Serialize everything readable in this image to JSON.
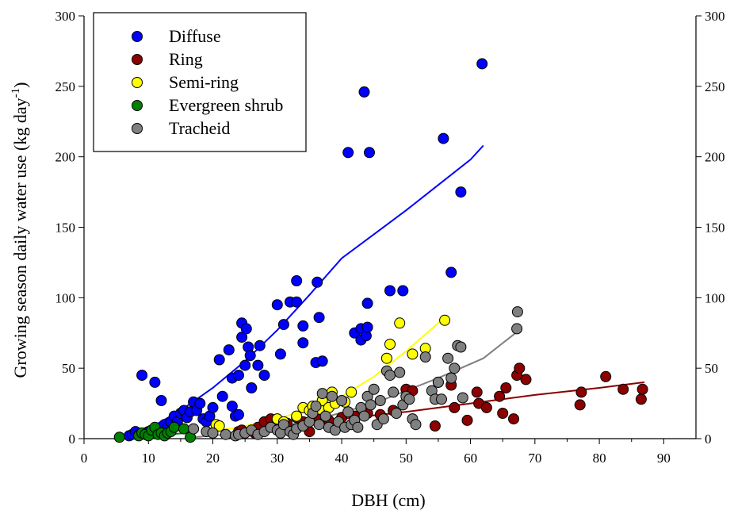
{
  "chart_data": {
    "type": "scatter",
    "xlabel": "DBH (cm)",
    "ylabel_main": "Growing season daily water use (kg day",
    "ylabel_sup": "-1",
    "ylabel_close": ")",
    "xlim": [
      0,
      95
    ],
    "ylim": [
      0,
      300
    ],
    "x_ticks": [
      "0",
      "10",
      "20",
      "30",
      "40",
      "50",
      "60",
      "70",
      "80",
      "90"
    ],
    "y_ticks": [
      "0",
      "50",
      "100",
      "150",
      "200",
      "250",
      "300"
    ],
    "y2_ticks": [
      "0",
      "50",
      "100",
      "150",
      "200",
      "250",
      "300"
    ],
    "grid": false,
    "legend_position": "top-left",
    "series": [
      {
        "name": "Diffuse",
        "color": "#0000ff",
        "points": [
          [
            7,
            2
          ],
          [
            7.5,
            3
          ],
          [
            8,
            5
          ],
          [
            8.5,
            3
          ],
          [
            9,
            45
          ],
          [
            9.5,
            4
          ],
          [
            10,
            5
          ],
          [
            11,
            40
          ],
          [
            11.5,
            6
          ],
          [
            12,
            27
          ],
          [
            12.5,
            10
          ],
          [
            13,
            8
          ],
          [
            13.5,
            12
          ],
          [
            14,
            16
          ],
          [
            14.5,
            12
          ],
          [
            15,
            18
          ],
          [
            15.5,
            20
          ],
          [
            16,
            15
          ],
          [
            16.5,
            19
          ],
          [
            17,
            26
          ],
          [
            17.5,
            20
          ],
          [
            18,
            25
          ],
          [
            18.5,
            14
          ],
          [
            19,
            12
          ],
          [
            19.5,
            16
          ],
          [
            20,
            22
          ],
          [
            21,
            56
          ],
          [
            21.5,
            30
          ],
          [
            22.5,
            63
          ],
          [
            23,
            43
          ],
          [
            23,
            23
          ],
          [
            23.5,
            16
          ],
          [
            24,
            45
          ],
          [
            24,
            17
          ],
          [
            24.5,
            82
          ],
          [
            24.5,
            72
          ],
          [
            25,
            52
          ],
          [
            25.2,
            78
          ],
          [
            25.5,
            65
          ],
          [
            25.8,
            59
          ],
          [
            26,
            36
          ],
          [
            27,
            52
          ],
          [
            27.3,
            66
          ],
          [
            28,
            45
          ],
          [
            30,
            95
          ],
          [
            30.5,
            60
          ],
          [
            31,
            81
          ],
          [
            32,
            97
          ],
          [
            33,
            112
          ],
          [
            33,
            97
          ],
          [
            34,
            80
          ],
          [
            34,
            68
          ],
          [
            36,
            54
          ],
          [
            36.2,
            111
          ],
          [
            36.5,
            86
          ],
          [
            37,
            55
          ],
          [
            41,
            203
          ],
          [
            42,
            75
          ],
          [
            43,
            70
          ],
          [
            43,
            78
          ],
          [
            43.5,
            246
          ],
          [
            43.8,
            73
          ],
          [
            44,
            96
          ],
          [
            44,
            79
          ],
          [
            44.3,
            203
          ],
          [
            47.5,
            105
          ],
          [
            49.5,
            105
          ],
          [
            55.8,
            213
          ],
          [
            57,
            118
          ],
          [
            58.5,
            175
          ],
          [
            61.8,
            266
          ]
        ],
        "fit": [
          [
            7,
            2
          ],
          [
            10,
            7
          ],
          [
            15,
            20
          ],
          [
            20,
            36
          ],
          [
            25,
            55
          ],
          [
            30,
            77
          ],
          [
            35,
            102
          ],
          [
            40,
            128
          ],
          [
            45,
            145
          ],
          [
            50,
            162
          ],
          [
            55,
            180
          ],
          [
            60,
            198
          ],
          [
            62,
            208
          ]
        ]
      },
      {
        "name": "Ring",
        "color": "#8b0000",
        "points": [
          [
            24,
            5
          ],
          [
            24.5,
            6
          ],
          [
            26.5,
            4
          ],
          [
            27,
            8
          ],
          [
            28,
            12
          ],
          [
            29,
            14
          ],
          [
            30,
            13
          ],
          [
            31.5,
            11
          ],
          [
            33,
            15
          ],
          [
            34,
            12
          ],
          [
            35,
            5
          ],
          [
            36,
            15
          ],
          [
            38,
            13
          ],
          [
            40,
            15
          ],
          [
            42,
            16
          ],
          [
            44,
            18
          ],
          [
            46,
            17
          ],
          [
            48,
            20
          ],
          [
            50,
            35
          ],
          [
            51,
            34
          ],
          [
            54.5,
            9
          ],
          [
            55,
            40
          ],
          [
            57,
            38
          ],
          [
            57.5,
            22
          ],
          [
            59.5,
            13
          ],
          [
            61,
            33
          ],
          [
            61.3,
            25
          ],
          [
            62.5,
            22
          ],
          [
            64.5,
            30
          ],
          [
            65,
            18
          ],
          [
            65.5,
            36
          ],
          [
            66.7,
            14
          ],
          [
            67.2,
            45
          ],
          [
            67.6,
            50
          ],
          [
            68.6,
            42
          ],
          [
            77,
            24
          ],
          [
            77.2,
            33
          ],
          [
            81,
            44
          ],
          [
            83.7,
            35
          ],
          [
            86.5,
            28
          ],
          [
            86.7,
            35
          ]
        ],
        "fit": [
          [
            23,
            3
          ],
          [
            30,
            9
          ],
          [
            40,
            14
          ],
          [
            50,
            19
          ],
          [
            60,
            25
          ],
          [
            70,
            31
          ],
          [
            80,
            36
          ],
          [
            87,
            40
          ]
        ]
      },
      {
        "name": "Semi-ring",
        "color": "#ffff00",
        "points": [
          [
            20.5,
            10
          ],
          [
            21,
            9
          ],
          [
            30,
            14
          ],
          [
            31,
            12
          ],
          [
            33,
            16
          ],
          [
            34,
            22
          ],
          [
            35,
            20
          ],
          [
            35.5,
            23
          ],
          [
            36.5,
            21
          ],
          [
            37,
            27
          ],
          [
            38,
            22
          ],
          [
            38.5,
            33
          ],
          [
            39,
            25
          ],
          [
            40.5,
            26
          ],
          [
            41.5,
            33
          ],
          [
            47,
            57
          ],
          [
            47.5,
            67
          ],
          [
            49,
            82
          ],
          [
            51,
            60
          ],
          [
            53,
            64
          ],
          [
            56,
            84
          ]
        ],
        "fit": [
          [
            20,
            5
          ],
          [
            25,
            9
          ],
          [
            30,
            14
          ],
          [
            35,
            21
          ],
          [
            40,
            30
          ],
          [
            45,
            44
          ],
          [
            50,
            62
          ],
          [
            56,
            86
          ]
        ]
      },
      {
        "name": "Evergreen shrub",
        "color": "#008000",
        "points": [
          [
            5.5,
            1
          ],
          [
            8.5,
            2
          ],
          [
            9,
            4
          ],
          [
            9.5,
            3
          ],
          [
            10,
            2
          ],
          [
            10.5,
            6
          ],
          [
            11,
            8
          ],
          [
            11.5,
            3
          ],
          [
            12,
            4
          ],
          [
            12.5,
            2
          ],
          [
            13,
            4
          ],
          [
            13.5,
            5
          ],
          [
            14,
            8
          ],
          [
            15.5,
            7
          ],
          [
            16.5,
            1
          ]
        ],
        "fit": [
          [
            5,
            1
          ],
          [
            10,
            2
          ],
          [
            16,
            4
          ]
        ]
      },
      {
        "name": "Tracheid",
        "color": "#808080",
        "points": [
          [
            17,
            7
          ],
          [
            19,
            5
          ],
          [
            20,
            4
          ],
          [
            22,
            3
          ],
          [
            23.5,
            2
          ],
          [
            24,
            3
          ],
          [
            25,
            4
          ],
          [
            26,
            6
          ],
          [
            27,
            3
          ],
          [
            28,
            5
          ],
          [
            29,
            8
          ],
          [
            30,
            6
          ],
          [
            30.5,
            4
          ],
          [
            31,
            10
          ],
          [
            32,
            5
          ],
          [
            32.5,
            3
          ],
          [
            33,
            7
          ],
          [
            34,
            9
          ],
          [
            35,
            12
          ],
          [
            35.5,
            18
          ],
          [
            36,
            23
          ],
          [
            36.5,
            10
          ],
          [
            37,
            32
          ],
          [
            37.5,
            16
          ],
          [
            38,
            8
          ],
          [
            38.5,
            30
          ],
          [
            39,
            6
          ],
          [
            39.5,
            12
          ],
          [
            40,
            27
          ],
          [
            40.5,
            8
          ],
          [
            41,
            19
          ],
          [
            41.5,
            10
          ],
          [
            42,
            13
          ],
          [
            42.5,
            8
          ],
          [
            43,
            22
          ],
          [
            43.5,
            16
          ],
          [
            44,
            30
          ],
          [
            44.5,
            24
          ],
          [
            45,
            35
          ],
          [
            45.5,
            10
          ],
          [
            46,
            27
          ],
          [
            46.5,
            14
          ],
          [
            47,
            48
          ],
          [
            47.5,
            45
          ],
          [
            48,
            33
          ],
          [
            48.5,
            18
          ],
          [
            49,
            47
          ],
          [
            49.5,
            24
          ],
          [
            50,
            30
          ],
          [
            50.5,
            28
          ],
          [
            51,
            14
          ],
          [
            51.5,
            10
          ],
          [
            53,
            58
          ],
          [
            54,
            34
          ],
          [
            54.5,
            28
          ],
          [
            55,
            40
          ],
          [
            55.5,
            28
          ],
          [
            56.5,
            57
          ],
          [
            57,
            43
          ],
          [
            57.5,
            50
          ],
          [
            58,
            66
          ],
          [
            58.5,
            65
          ],
          [
            58.8,
            29
          ],
          [
            67.2,
            78
          ],
          [
            67.3,
            90
          ]
        ],
        "fit": [
          [
            17,
            1
          ],
          [
            25,
            4
          ],
          [
            35,
            12
          ],
          [
            45,
            25
          ],
          [
            55,
            43
          ],
          [
            62,
            57
          ],
          [
            67,
            75
          ]
        ]
      }
    ]
  }
}
